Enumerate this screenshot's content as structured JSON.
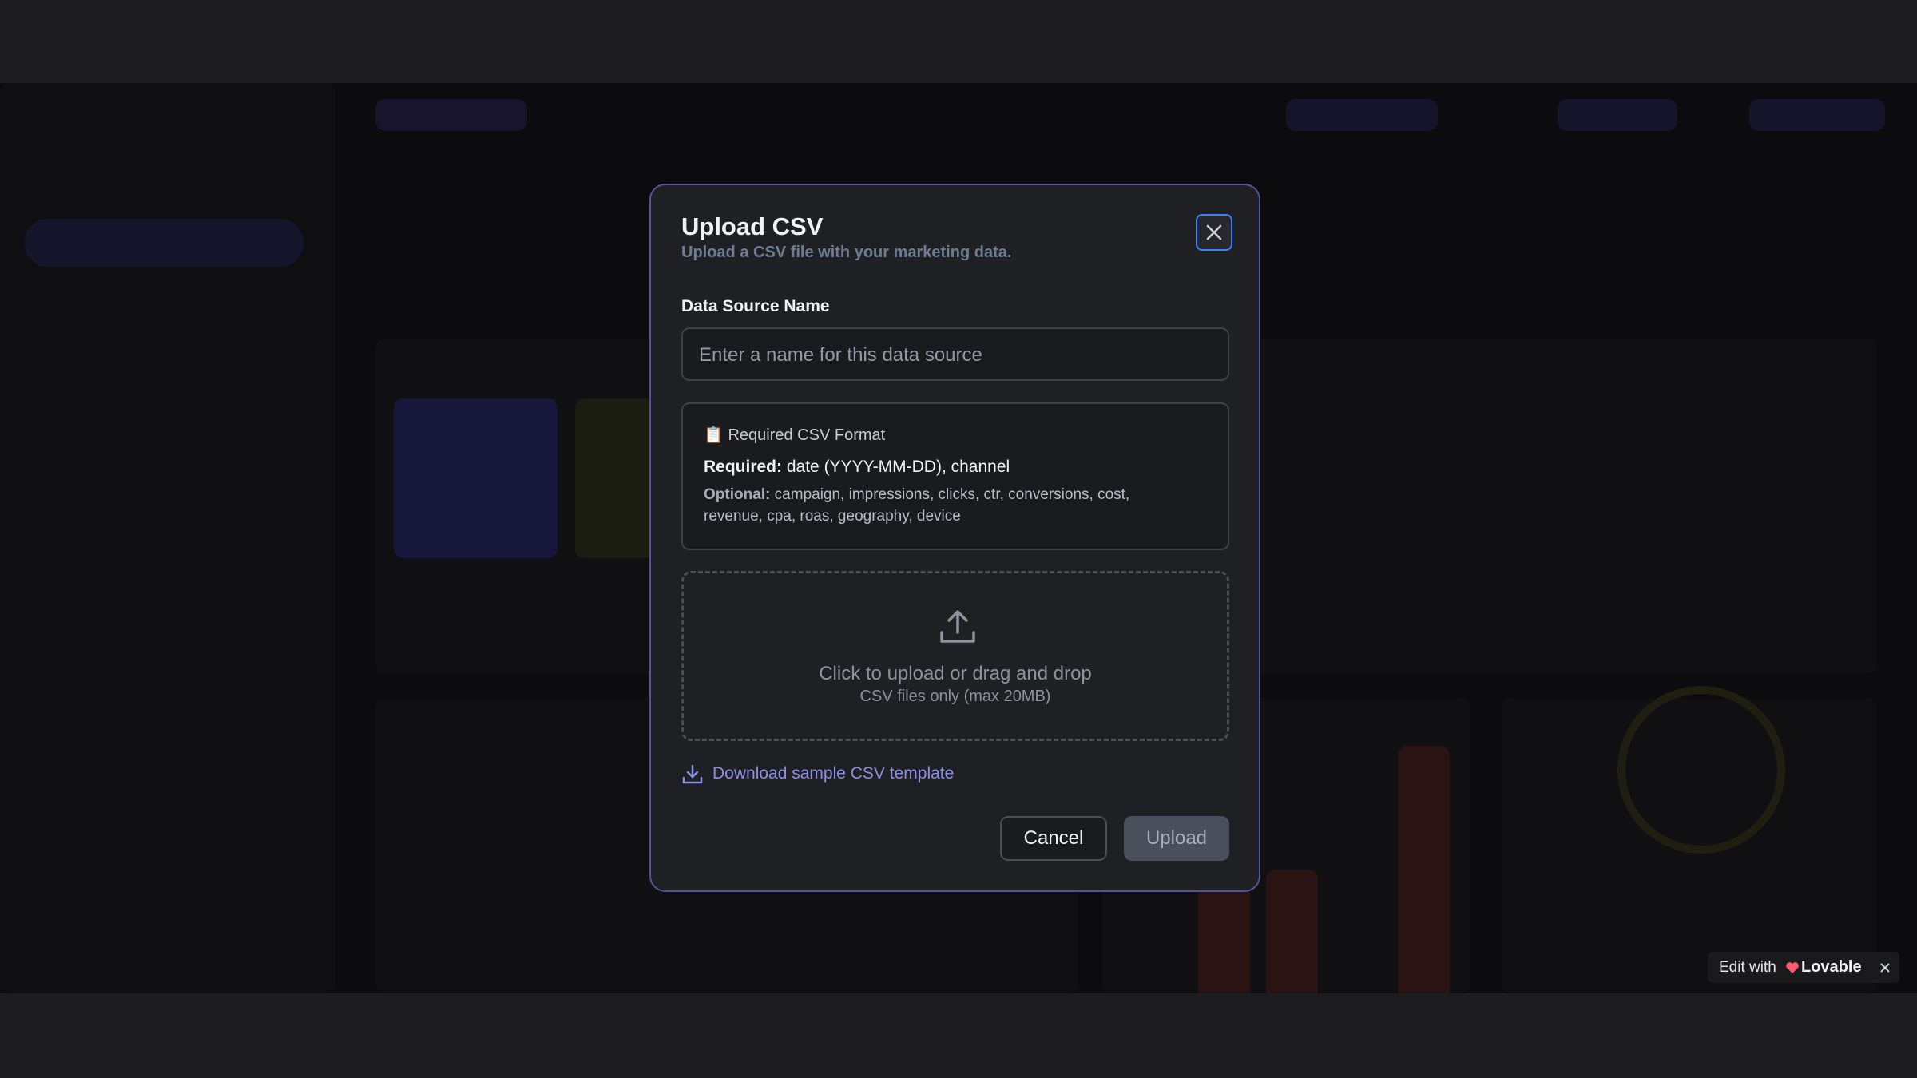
{
  "modal": {
    "title": "Upload CSV",
    "subtitle": "Upload a CSV file with your marketing data.",
    "field_label": "Data Source Name",
    "field_placeholder": "Enter a name for this data source",
    "format": {
      "heading": "📋 Required CSV Format",
      "required_label": "Required:",
      "required_text": "date (YYYY-MM-DD), channel",
      "optional_label": "Optional:",
      "optional_text": "campaign, impressions, clicks, ctr, conversions, cost, revenue, cpa, roas, geography, device"
    },
    "dropzone": {
      "primary": "Click to upload or drag and drop",
      "secondary": "CSV files only (max 20MB)"
    },
    "download_link": "Download sample CSV template",
    "buttons": {
      "cancel": "Cancel",
      "upload": "Upload"
    }
  },
  "badge": {
    "prefix": "Edit with",
    "brand": "Lovable"
  }
}
